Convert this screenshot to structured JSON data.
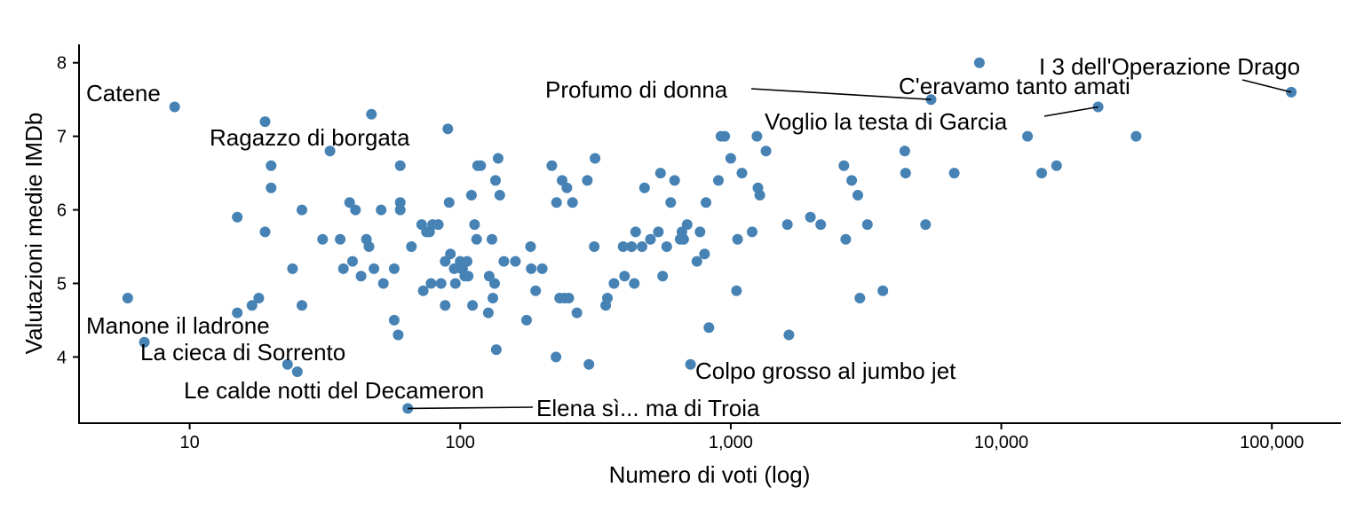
{
  "chart_data": {
    "type": "scatter",
    "title": "",
    "xlabel": "Numero di voti (log)",
    "ylabel": "Valutazioni medie IMDb",
    "x_scale": "log10",
    "xlim": [
      3.9,
      180000
    ],
    "ylim": [
      3.1,
      8.25
    ],
    "grid": false,
    "legend": "none",
    "point_color": "#4682B4",
    "x_ticks": [
      {
        "value": 10,
        "label": "10"
      },
      {
        "value": 100,
        "label": "100"
      },
      {
        "value": 1000,
        "label": "1,000"
      },
      {
        "value": 10000,
        "label": "10,000"
      },
      {
        "value": 100000,
        "label": "100,000"
      }
    ],
    "y_ticks": [
      {
        "value": 4,
        "label": "4"
      },
      {
        "value": 5,
        "label": "5"
      },
      {
        "value": 6,
        "label": "6"
      },
      {
        "value": 7,
        "label": "7"
      },
      {
        "value": 8,
        "label": "8"
      }
    ],
    "points": [
      [
        8.8,
        7.4
      ],
      [
        5.9,
        4.8
      ],
      [
        6.8,
        4.2
      ],
      [
        15,
        5.9
      ],
      [
        15,
        4.6
      ],
      [
        17,
        4.7
      ],
      [
        18,
        4.8
      ],
      [
        19,
        5.7
      ],
      [
        19,
        7.2
      ],
      [
        20,
        6.6
      ],
      [
        20,
        6.3
      ],
      [
        23,
        3.9
      ],
      [
        24,
        5.2
      ],
      [
        25,
        3.8
      ],
      [
        26,
        6.0
      ],
      [
        26,
        4.7
      ],
      [
        31,
        5.6
      ],
      [
        33,
        6.8
      ],
      [
        36,
        5.6
      ],
      [
        37,
        5.2
      ],
      [
        39,
        6.1
      ],
      [
        40,
        5.3
      ],
      [
        41,
        6.0
      ],
      [
        43,
        5.1
      ],
      [
        45,
        5.6
      ],
      [
        46,
        5.5
      ],
      [
        47,
        7.3
      ],
      [
        48,
        5.2
      ],
      [
        51,
        6.0
      ],
      [
        52,
        5.0
      ],
      [
        57,
        5.2
      ],
      [
        57,
        4.5
      ],
      [
        59,
        4.3
      ],
      [
        60,
        6.6
      ],
      [
        60,
        6.1
      ],
      [
        60,
        6.0
      ],
      [
        64,
        3.3
      ],
      [
        66,
        5.5
      ],
      [
        72,
        5.8
      ],
      [
        73,
        4.9
      ],
      [
        75,
        5.7
      ],
      [
        77,
        5.7
      ],
      [
        78,
        5.0
      ],
      [
        79,
        5.8
      ],
      [
        83,
        5.8
      ],
      [
        85,
        5.0
      ],
      [
        88,
        5.3
      ],
      [
        88,
        4.7
      ],
      [
        90,
        7.1
      ],
      [
        91,
        6.1
      ],
      [
        92,
        5.4
      ],
      [
        95,
        5.2
      ],
      [
        96,
        5.0
      ],
      [
        100,
        5.3
      ],
      [
        101,
        5.2
      ],
      [
        102,
        5.2
      ],
      [
        104,
        5.1
      ],
      [
        106,
        5.3
      ],
      [
        107,
        5.1
      ],
      [
        110,
        6.2
      ],
      [
        111,
        4.7
      ],
      [
        113,
        5.8
      ],
      [
        115,
        5.6
      ],
      [
        116,
        6.6
      ],
      [
        119,
        6.6
      ],
      [
        127,
        4.6
      ],
      [
        128,
        5.1
      ],
      [
        131,
        5.6
      ],
      [
        132,
        4.8
      ],
      [
        134,
        5.0
      ],
      [
        135,
        6.4
      ],
      [
        136,
        4.1
      ],
      [
        138,
        6.7
      ],
      [
        140,
        6.2
      ],
      [
        145,
        5.3
      ],
      [
        160,
        5.3
      ],
      [
        176,
        4.5
      ],
      [
        182,
        5.5
      ],
      [
        183,
        5.2
      ],
      [
        190,
        4.9
      ],
      [
        201,
        5.2
      ],
      [
        218,
        6.6
      ],
      [
        226,
        4.0
      ],
      [
        227,
        6.1
      ],
      [
        233,
        4.8
      ],
      [
        238,
        6.4
      ],
      [
        243,
        4.8
      ],
      [
        248,
        6.3
      ],
      [
        252,
        4.8
      ],
      [
        260,
        6.1
      ],
      [
        270,
        4.6
      ],
      [
        295,
        6.4
      ],
      [
        299,
        3.9
      ],
      [
        313,
        5.5
      ],
      [
        315,
        6.7
      ],
      [
        345,
        4.7
      ],
      [
        350,
        4.8
      ],
      [
        370,
        5.0
      ],
      [
        400,
        5.5
      ],
      [
        405,
        5.1
      ],
      [
        430,
        5.5
      ],
      [
        440,
        5.0
      ],
      [
        445,
        5.7
      ],
      [
        470,
        5.5
      ],
      [
        480,
        6.3
      ],
      [
        505,
        5.6
      ],
      [
        540,
        5.7
      ],
      [
        550,
        6.5
      ],
      [
        560,
        5.1
      ],
      [
        580,
        5.5
      ],
      [
        600,
        6.1
      ],
      [
        620,
        6.4
      ],
      [
        650,
        5.6
      ],
      [
        660,
        5.7
      ],
      [
        670,
        5.6
      ],
      [
        690,
        5.8
      ],
      [
        710,
        3.9
      ],
      [
        750,
        5.3
      ],
      [
        770,
        5.7
      ],
      [
        800,
        5.4
      ],
      [
        810,
        6.1
      ],
      [
        830,
        4.4
      ],
      [
        900,
        6.4
      ],
      [
        920,
        7.0
      ],
      [
        950,
        7.0
      ],
      [
        1000,
        6.7
      ],
      [
        1050,
        4.9
      ],
      [
        1060,
        5.6
      ],
      [
        1100,
        6.5
      ],
      [
        1200,
        5.7
      ],
      [
        1250,
        7.0
      ],
      [
        1260,
        6.3
      ],
      [
        1280,
        6.2
      ],
      [
        1350,
        6.8
      ],
      [
        1620,
        5.8
      ],
      [
        1640,
        4.3
      ],
      [
        1970,
        5.9
      ],
      [
        2150,
        5.8
      ],
      [
        2620,
        6.6
      ],
      [
        2660,
        5.6
      ],
      [
        2800,
        6.4
      ],
      [
        2950,
        6.2
      ],
      [
        3000,
        4.8
      ],
      [
        3200,
        5.8
      ],
      [
        3650,
        4.9
      ],
      [
        4400,
        6.8
      ],
      [
        4430,
        6.5
      ],
      [
        5250,
        5.8
      ],
      [
        5500,
        7.5
      ],
      [
        6700,
        6.5
      ],
      [
        8300,
        8.0
      ],
      [
        12500,
        7.0
      ],
      [
        14100,
        6.5
      ],
      [
        16000,
        6.6
      ],
      [
        22800,
        7.4
      ],
      [
        31500,
        7.0
      ],
      [
        118000,
        7.6
      ]
    ],
    "annotations": [
      {
        "label": "Catene",
        "x": 8.8,
        "y": 7.4
      },
      {
        "label": "Ragazzo di borgata",
        "x": 47,
        "y": 7.3
      },
      {
        "label": "Manone il ladrone",
        "x": 15,
        "y": 4.6
      },
      {
        "label": "La cieca di Sorrento",
        "x": 25,
        "y": 3.8
      },
      {
        "label": "Le calde notti del Decameron",
        "x": 64,
        "y": 3.3
      },
      {
        "label": "Elena sì... ma di Troia",
        "x": 64,
        "y": 3.3
      },
      {
        "label": "Colpo grosso al jumbo jet",
        "x": 710,
        "y": 3.9
      },
      {
        "label": "Profumo di donna",
        "x": 5500,
        "y": 7.5
      },
      {
        "label": "C'eravamo tanto amati",
        "x": 8300,
        "y": 8.0
      },
      {
        "label": "Voglio la testa di Garcia",
        "x": 22800,
        "y": 7.4
      },
      {
        "label": "I 3 dell'Operazione Drago",
        "x": 118000,
        "y": 7.6
      }
    ]
  }
}
